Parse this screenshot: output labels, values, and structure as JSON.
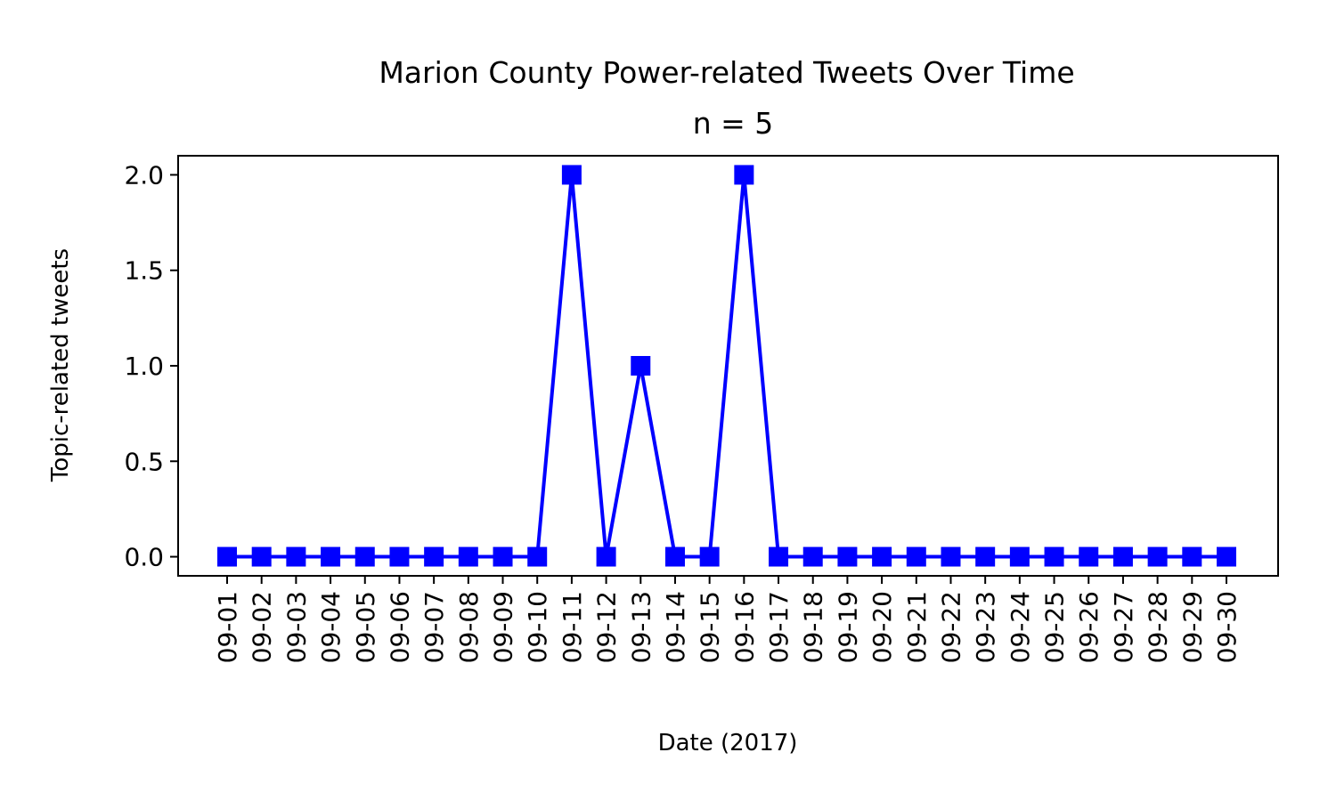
{
  "chart_data": {
    "type": "line",
    "title": "Marion County Power-related Tweets Over Time",
    "subtitle": "n = 5",
    "xlabel": "Date (2017)",
    "ylabel": "Topic-related tweets",
    "categories": [
      "09-01",
      "09-02",
      "09-03",
      "09-04",
      "09-05",
      "09-06",
      "09-07",
      "09-08",
      "09-09",
      "09-10",
      "09-11",
      "09-12",
      "09-13",
      "09-14",
      "09-15",
      "09-16",
      "09-17",
      "09-18",
      "09-19",
      "09-20",
      "09-21",
      "09-22",
      "09-23",
      "09-24",
      "09-25",
      "09-26",
      "09-27",
      "09-28",
      "09-29",
      "09-30"
    ],
    "series": [
      {
        "values": [
          0,
          0,
          0,
          0,
          0,
          0,
          0,
          0,
          0,
          0,
          2,
          0,
          1,
          0,
          0,
          2,
          0,
          0,
          0,
          0,
          0,
          0,
          0,
          0,
          0,
          0,
          0,
          0,
          0,
          0
        ],
        "color": "#0000ff",
        "marker": "square"
      }
    ],
    "ylim": [
      -0.1,
      2.1
    ],
    "yticks": [
      "0.0",
      "0.5",
      "1.0",
      "1.5",
      "2.0"
    ],
    "grid": false,
    "legend": "none"
  }
}
